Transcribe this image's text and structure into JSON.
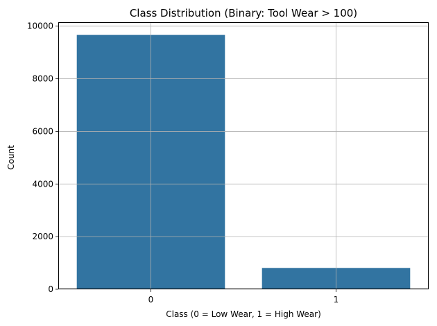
{
  "chart_data": {
    "type": "bar",
    "title": "Class Distribution (Binary: Tool Wear > 100)",
    "xlabel": "Class (0 = Low Wear, 1 = High Wear)",
    "ylabel": "Count",
    "categories": [
      "0",
      "1"
    ],
    "values": [
      9670,
      810
    ],
    "ylim": [
      0,
      10150
    ],
    "yticks": [
      0,
      2000,
      4000,
      6000,
      8000,
      10000
    ],
    "grid": true,
    "bar_color": "#3274a1",
    "grid_color": "#b0b0b0",
    "legend": "none"
  }
}
